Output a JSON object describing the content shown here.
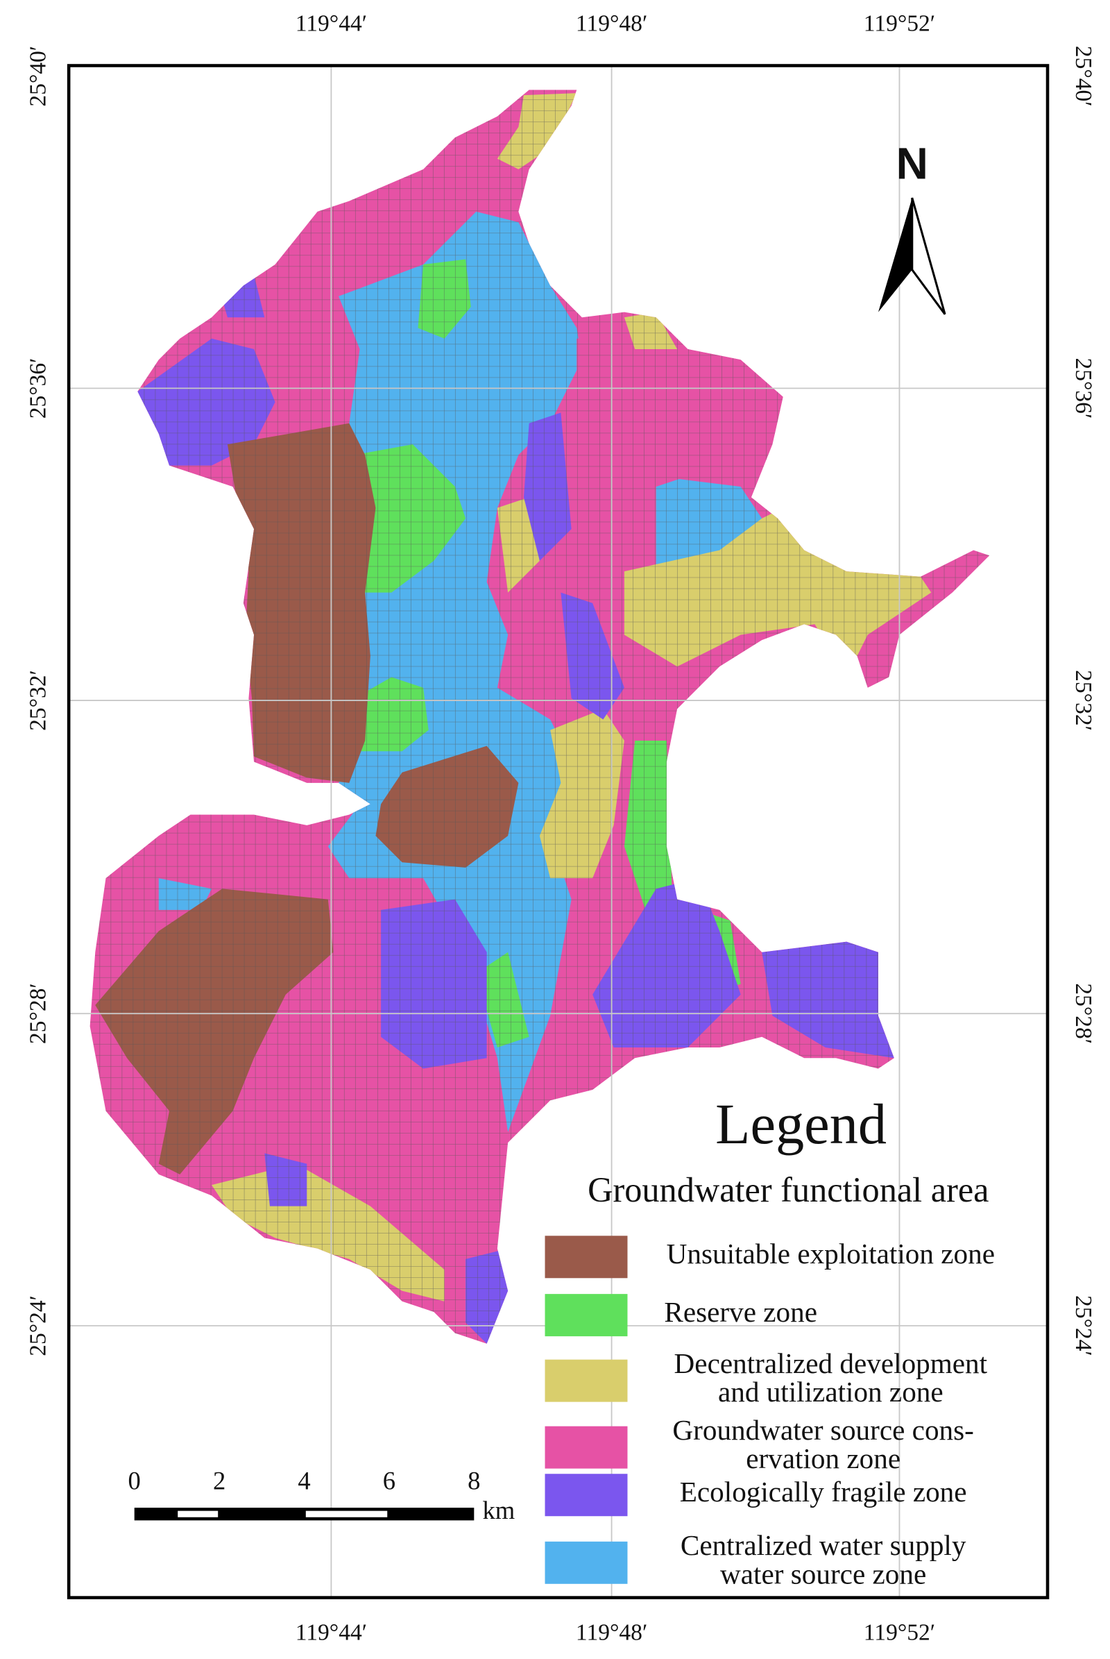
{
  "map": {
    "longitude_labels": [
      "119°44′",
      "119°48′",
      "119°52′"
    ],
    "latitude_labels": [
      "25°40′",
      "25°36′",
      "25°32′",
      "25°28′",
      "25°24′"
    ],
    "north": "N",
    "legend": {
      "title": "Legend",
      "subtitle": "Groundwater functional area",
      "items": [
        {
          "lines": [
            "Unsuitable exploitation zone"
          ],
          "color": "#9a5a4a"
        },
        {
          "lines": [
            "Reserve zone"
          ],
          "color": "#5fe05c"
        },
        {
          "lines": [
            "Decentralized development",
            "and utilization zone"
          ],
          "color": "#d9ce6c"
        },
        {
          "lines": [
            "Groundwater source cons-",
            "ervation zone"
          ],
          "color": "#e652a5"
        },
        {
          "lines": [
            "Ecologically fragile zone"
          ],
          "color": "#7b56ee"
        },
        {
          "lines": [
            "Centralized water supply",
            "water source zone"
          ],
          "color": "#52b2ee"
        }
      ]
    },
    "scale_bar": {
      "ticks": [
        0,
        2,
        4,
        6,
        8
      ],
      "unit": "km"
    }
  }
}
